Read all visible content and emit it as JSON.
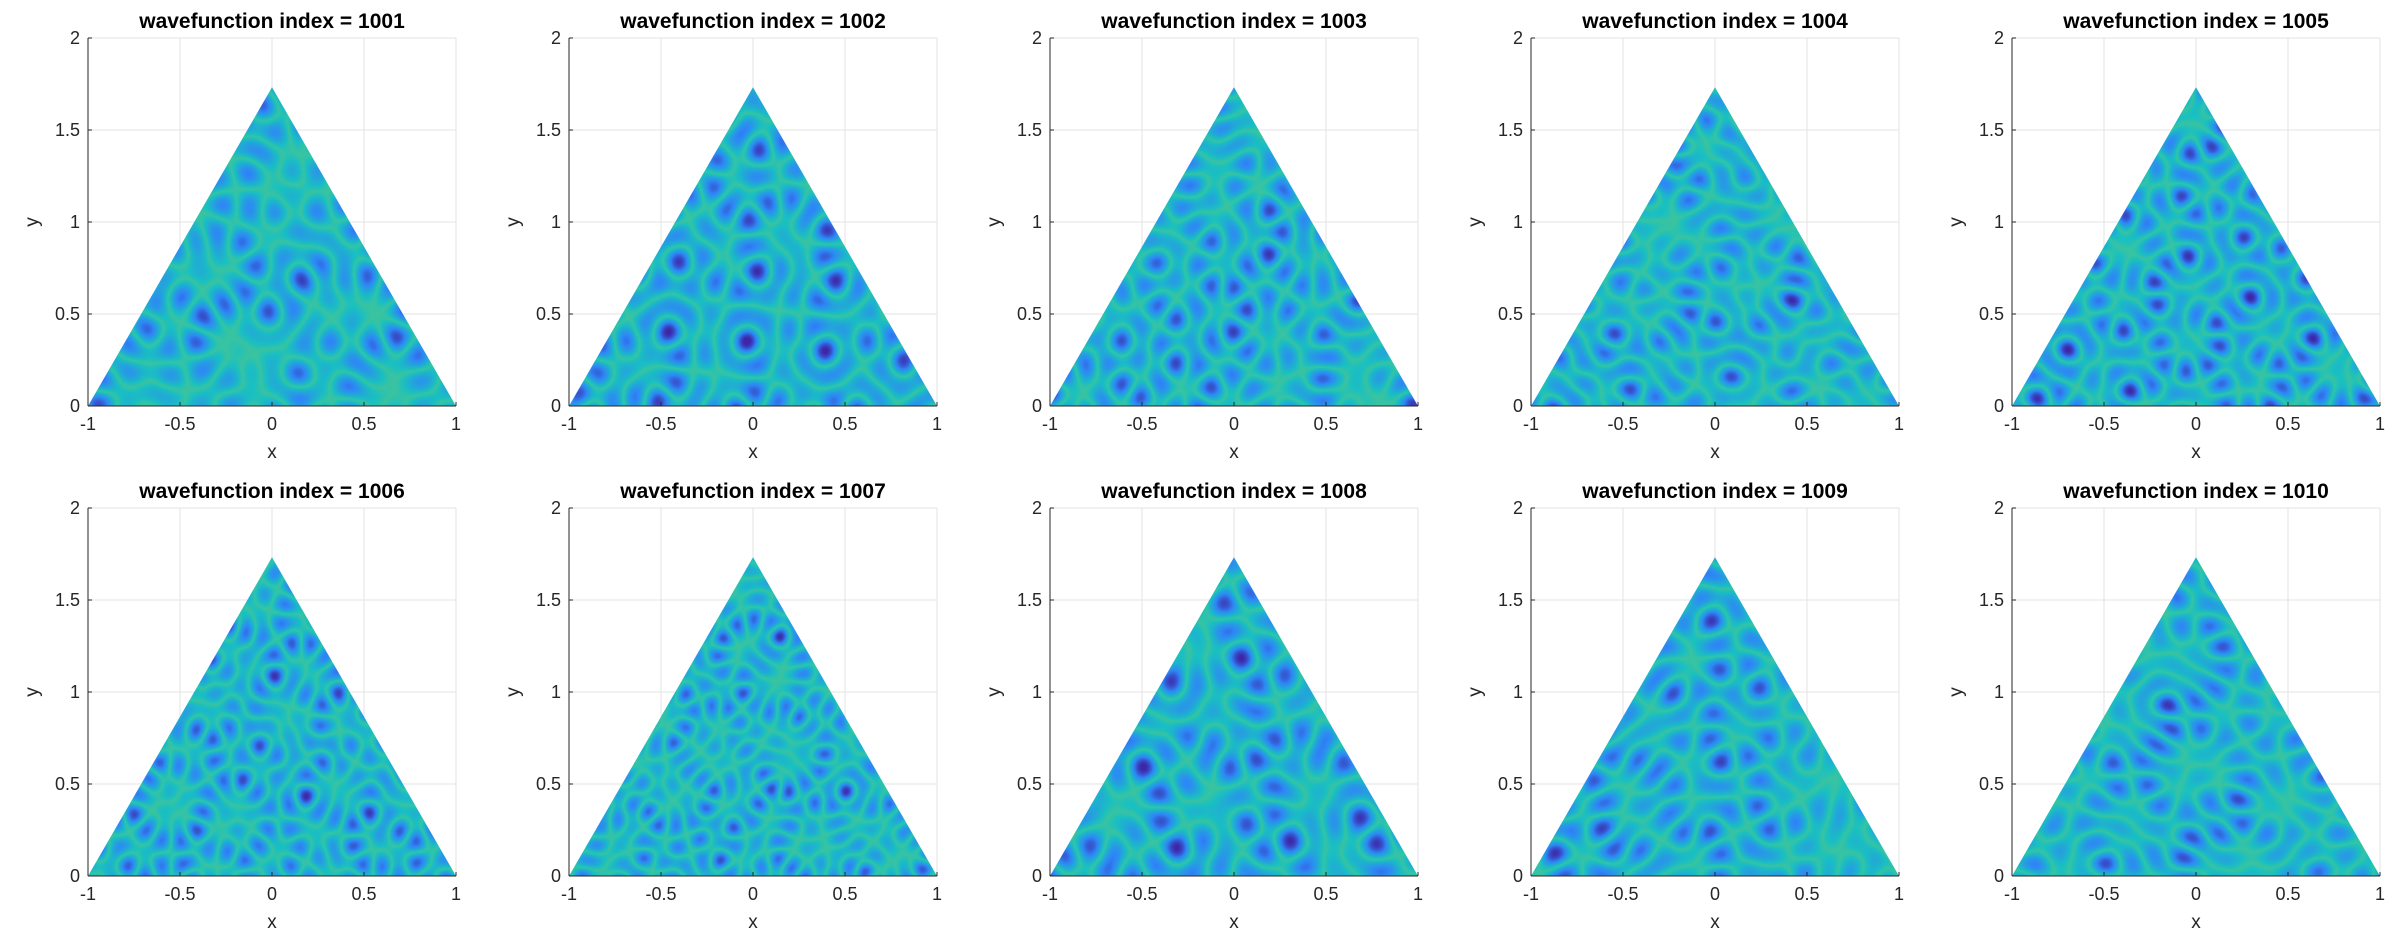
{
  "chart_data": [
    {
      "type": "heatmap",
      "title": "wavefunction index = 1001",
      "index": 1001,
      "xlabel": "x",
      "ylabel": "y",
      "xlim": [
        -1,
        1
      ],
      "ylim": [
        0,
        2
      ],
      "xticks": [
        "-1",
        "-0.5",
        "0",
        "0.5",
        "1"
      ],
      "yticks": [
        "0",
        "0.5",
        "1",
        "1.5",
        "2"
      ],
      "grid": true,
      "domain": {
        "shape": "equilateral triangle",
        "vertices": [
          [
            -1,
            0
          ],
          [
            1,
            0
          ],
          [
            0,
            1.732
          ]
        ]
      }
    },
    {
      "type": "heatmap",
      "title": "wavefunction index = 1002",
      "index": 1002,
      "xlabel": "x",
      "ylabel": "y",
      "xlim": [
        -1,
        1
      ],
      "ylim": [
        0,
        2
      ],
      "xticks": [
        "-1",
        "-0.5",
        "0",
        "0.5",
        "1"
      ],
      "yticks": [
        "0",
        "0.5",
        "1",
        "1.5",
        "2"
      ],
      "grid": true,
      "domain": {
        "shape": "equilateral triangle",
        "vertices": [
          [
            -1,
            0
          ],
          [
            1,
            0
          ],
          [
            0,
            1.732
          ]
        ]
      }
    },
    {
      "type": "heatmap",
      "title": "wavefunction index = 1003",
      "index": 1003,
      "xlabel": "x",
      "ylabel": "y",
      "xlim": [
        -1,
        1
      ],
      "ylim": [
        0,
        2
      ],
      "xticks": [
        "-1",
        "-0.5",
        "0",
        "0.5",
        "1"
      ],
      "yticks": [
        "0",
        "0.5",
        "1",
        "1.5",
        "2"
      ],
      "grid": true,
      "domain": {
        "shape": "equilateral triangle",
        "vertices": [
          [
            -1,
            0
          ],
          [
            1,
            0
          ],
          [
            0,
            1.732
          ]
        ]
      }
    },
    {
      "type": "heatmap",
      "title": "wavefunction index = 1004",
      "index": 1004,
      "xlabel": "x",
      "ylabel": "y",
      "xlim": [
        -1,
        1
      ],
      "ylim": [
        0,
        2
      ],
      "xticks": [
        "-1",
        "-0.5",
        "0",
        "0.5",
        "1"
      ],
      "yticks": [
        "0",
        "0.5",
        "1",
        "1.5",
        "2"
      ],
      "grid": true,
      "domain": {
        "shape": "equilateral triangle",
        "vertices": [
          [
            -1,
            0
          ],
          [
            1,
            0
          ],
          [
            0,
            1.732
          ]
        ]
      }
    },
    {
      "type": "heatmap",
      "title": "wavefunction index = 1005",
      "index": 1005,
      "xlabel": "x",
      "ylabel": "y",
      "xlim": [
        -1,
        1
      ],
      "ylim": [
        0,
        2
      ],
      "xticks": [
        "-1",
        "-0.5",
        "0",
        "0.5",
        "1"
      ],
      "yticks": [
        "0",
        "0.5",
        "1",
        "1.5",
        "2"
      ],
      "grid": true,
      "domain": {
        "shape": "equilateral triangle",
        "vertices": [
          [
            -1,
            0
          ],
          [
            1,
            0
          ],
          [
            0,
            1.732
          ]
        ]
      }
    },
    {
      "type": "heatmap",
      "title": "wavefunction index = 1006",
      "index": 1006,
      "xlabel": "x",
      "ylabel": "y",
      "xlim": [
        -1,
        1
      ],
      "ylim": [
        0,
        2
      ],
      "xticks": [
        "-1",
        "-0.5",
        "0",
        "0.5",
        "1"
      ],
      "yticks": [
        "0",
        "0.5",
        "1",
        "1.5",
        "2"
      ],
      "grid": true,
      "domain": {
        "shape": "equilateral triangle",
        "vertices": [
          [
            -1,
            0
          ],
          [
            1,
            0
          ],
          [
            0,
            1.732
          ]
        ]
      }
    },
    {
      "type": "heatmap",
      "title": "wavefunction index = 1007",
      "index": 1007,
      "xlabel": "x",
      "ylabel": "y",
      "xlim": [
        -1,
        1
      ],
      "ylim": [
        0,
        2
      ],
      "xticks": [
        "-1",
        "-0.5",
        "0",
        "0.5",
        "1"
      ],
      "yticks": [
        "0",
        "0.5",
        "1",
        "1.5",
        "2"
      ],
      "grid": true,
      "domain": {
        "shape": "equilateral triangle",
        "vertices": [
          [
            -1,
            0
          ],
          [
            1,
            0
          ],
          [
            0,
            1.732
          ]
        ]
      }
    },
    {
      "type": "heatmap",
      "title": "wavefunction index = 1008",
      "index": 1008,
      "xlabel": "x",
      "ylabel": "y",
      "xlim": [
        -1,
        1
      ],
      "ylim": [
        0,
        2
      ],
      "xticks": [
        "-1",
        "-0.5",
        "0",
        "0.5",
        "1"
      ],
      "yticks": [
        "0",
        "0.5",
        "1",
        "1.5",
        "2"
      ],
      "grid": true,
      "domain": {
        "shape": "equilateral triangle",
        "vertices": [
          [
            -1,
            0
          ],
          [
            1,
            0
          ],
          [
            0,
            1.732
          ]
        ]
      }
    },
    {
      "type": "heatmap",
      "title": "wavefunction index = 1009",
      "index": 1009,
      "xlabel": "x",
      "ylabel": "y",
      "xlim": [
        -1,
        1
      ],
      "ylim": [
        0,
        2
      ],
      "xticks": [
        "-1",
        "-0.5",
        "0",
        "0.5",
        "1"
      ],
      "yticks": [
        "0",
        "0.5",
        "1",
        "1.5",
        "2"
      ],
      "grid": true,
      "domain": {
        "shape": "equilateral triangle",
        "vertices": [
          [
            -1,
            0
          ],
          [
            1,
            0
          ],
          [
            0,
            1.732
          ]
        ]
      }
    },
    {
      "type": "heatmap",
      "title": "wavefunction index = 1010",
      "index": 1010,
      "xlabel": "x",
      "ylabel": "y",
      "xlim": [
        -1,
        1
      ],
      "ylim": [
        0,
        2
      ],
      "xticks": [
        "-1",
        "-0.5",
        "0",
        "0.5",
        "1"
      ],
      "yticks": [
        "0",
        "0.5",
        "1",
        "1.5",
        "2"
      ],
      "grid": true,
      "domain": {
        "shape": "equilateral triangle",
        "vertices": [
          [
            -1,
            0
          ],
          [
            1,
            0
          ],
          [
            0,
            1.732
          ]
        ]
      }
    }
  ],
  "colors": {
    "low": "#3e26a8",
    "mid_low": "#2e87f7",
    "mid": "#1ac0c1",
    "mid_high": "#80cb58",
    "high": "#f9fb0e",
    "axis": "#262626",
    "grid": "#e3e3e3"
  }
}
